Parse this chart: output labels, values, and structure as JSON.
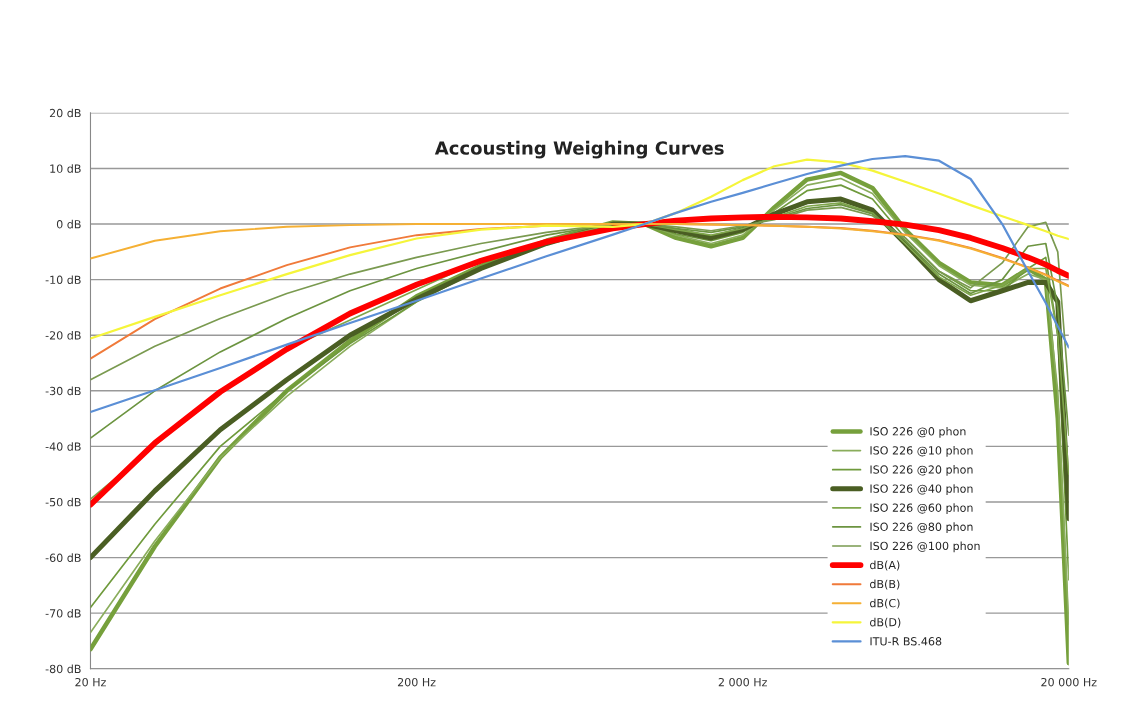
{
  "chart_data": {
    "type": "line",
    "title": "Accousting Weighing Curves",
    "x": [
      20,
      31.5,
      50,
      80,
      125,
      200,
      315,
      500,
      800,
      1000,
      1250,
      1600,
      2000,
      2500,
      3150,
      4000,
      5000,
      6300,
      8000,
      10000,
      12500,
      15000,
      17000,
      18500,
      20000
    ],
    "log": "x",
    "xlim": [
      20,
      20000
    ],
    "xticks": [
      {
        "value": 20,
        "label": "20 Hz"
      },
      {
        "value": 200,
        "label": "200 Hz"
      },
      {
        "value": 2000,
        "label": "2 000 Hz"
      },
      {
        "value": 20000,
        "label": "20 000 Hz"
      }
    ],
    "ylim": [
      -80,
      20
    ],
    "yticks": [
      {
        "value": -80,
        "label": "-80 dB"
      },
      {
        "value": -70,
        "label": "-70 dB"
      },
      {
        "value": -60,
        "label": "-60 dB"
      },
      {
        "value": -50,
        "label": "-50 dB"
      },
      {
        "value": -40,
        "label": "-40 dB"
      },
      {
        "value": -30,
        "label": "-30 dB"
      },
      {
        "value": -20,
        "label": "-20 dB"
      },
      {
        "value": -10,
        "label": "-10 dB"
      },
      {
        "value": 0,
        "label": "0 dB"
      },
      {
        "value": 10,
        "label": "10 dB"
      },
      {
        "value": 20,
        "label": "20 dB"
      }
    ],
    "grid": "y",
    "legend": "bottom right",
    "marker": "none",
    "line_style": "solid",
    "series": [
      {
        "name": "ISO 226 @0 phon",
        "color": "#76a03c",
        "values": [
          -76.5,
          -58,
          -42,
          -30,
          -21,
          -13,
          -7.5,
          -3,
          0.3,
          0,
          -2.5,
          -4,
          -2.5,
          3,
          8,
          9.2,
          6.5,
          -1,
          -7,
          -10.5,
          -11,
          -8,
          -10,
          -35,
          -79
        ]
      },
      {
        "name": "ISO 226 @10 phon",
        "color": "#8aad5c",
        "values": [
          -73.5,
          -57,
          -42,
          -31,
          -22,
          -14,
          -8,
          -3.5,
          0.3,
          0,
          -2,
          -3.5,
          -2,
          2.5,
          7,
          8.2,
          5.5,
          -1.5,
          -7.5,
          -11,
          -11.5,
          -9,
          -10,
          -30,
          -72
        ]
      },
      {
        "name": "ISO 226 @20 phon",
        "color": "#6f9a3c",
        "values": [
          -69,
          -54,
          -40,
          -30,
          -21.5,
          -14,
          -8,
          -3.5,
          0.2,
          0,
          -1.8,
          -3,
          -1.5,
          2,
          6,
          7,
          4.5,
          -2.5,
          -8.5,
          -12,
          -12,
          -8,
          -6,
          -20,
          -64
        ]
      },
      {
        "name": "ISO 226 @40 phon",
        "color": "#4a5e23",
        "values": [
          -60,
          -48,
          -37,
          -28,
          -20,
          -13.5,
          -8,
          -3.5,
          0,
          0,
          -1.2,
          -2.5,
          -1,
          1.8,
          4,
          4.5,
          2.5,
          -3.5,
          -10,
          -13.8,
          -12,
          -10.5,
          -10.5,
          -14,
          -53
        ]
      },
      {
        "name": "ISO 226 @60 phon",
        "color": "#7fa64b",
        "values": [
          -49.5,
          null,
          -30,
          -22.5,
          null,
          null,
          -6.5,
          -3,
          0,
          0,
          -1,
          -2,
          -0.8,
          1.2,
          3.2,
          3.8,
          2,
          -3.5,
          -9.5,
          -12.8,
          -11,
          -8,
          -8,
          -20,
          -45
        ]
      },
      {
        "name": "ISO 226 @80 phon",
        "color": "#6c9440",
        "values": [
          -38.5,
          -30,
          -23,
          -17,
          -12,
          -8,
          -5,
          -2,
          0,
          0,
          -0.8,
          -1.5,
          -0.5,
          1,
          2.8,
          3.5,
          1.8,
          -3,
          -9,
          -12.5,
          -10,
          -4,
          -3.5,
          -15,
          -38
        ]
      },
      {
        "name": "ISO 226 @100 phon",
        "color": "#7a9a50",
        "values": [
          -28,
          -22,
          -17,
          -12.5,
          -9,
          -6,
          -3.5,
          -1.5,
          0,
          0,
          -0.5,
          -1.2,
          -0.3,
          0.8,
          2.5,
          3,
          1.5,
          -2.5,
          -8.5,
          -11.5,
          -7,
          -0.5,
          0.3,
          -5,
          -30
        ]
      },
      {
        "name": "dB(A)",
        "color": "#ff0000",
        "values": [
          -50.5,
          -39.4,
          -30.2,
          -22.5,
          -16.1,
          -10.9,
          -6.6,
          -3.2,
          -0.8,
          0,
          0.6,
          1,
          1.2,
          1.3,
          1.2,
          1,
          0.5,
          -0.1,
          -1.1,
          -2.5,
          -4.3,
          -6,
          -7.3,
          -8.4,
          -9.3
        ]
      },
      {
        "name": "dB(B)",
        "color": "#f07a3a",
        "values": [
          -24.2,
          -17.1,
          -11.6,
          -7.4,
          -4.2,
          -2,
          -0.9,
          -0.3,
          0,
          0,
          0,
          -0.1,
          -0.2,
          -0.3,
          -0.5,
          -0.7,
          -1.2,
          -1.9,
          -2.9,
          -4.3,
          -6.1,
          -7.8,
          -9.1,
          -10.2,
          -11.1
        ]
      },
      {
        "name": "dB(C)",
        "color": "#f5b034",
        "values": [
          -6.2,
          -3,
          -1.3,
          -0.5,
          -0.2,
          0,
          0,
          0,
          0,
          0,
          0,
          -0.1,
          -0.2,
          -0.3,
          -0.5,
          -0.8,
          -1.3,
          -2,
          -3,
          -4.4,
          -6.2,
          -7.9,
          -9.2,
          -10.3,
          -11.2
        ]
      },
      {
        "name": "dB(D)",
        "color": "#f5f53a",
        "values": [
          -20.6,
          -16.7,
          -12.8,
          -9,
          -5.6,
          -2.6,
          -1,
          -0.3,
          -0.5,
          0,
          2,
          4.9,
          7.9,
          10.4,
          11.6,
          11.1,
          9.6,
          7.6,
          5.5,
          3.4,
          1.4,
          -0.2,
          -1.3,
          -2.1,
          -2.7
        ]
      },
      {
        "name": "ITU-R BS.468",
        "color": "#5b8fd6",
        "values": [
          -33.8,
          -29.9,
          -25.9,
          -21.7,
          -17.8,
          -13.8,
          -9.8,
          -5.8,
          -1.9,
          0,
          2,
          4,
          5.6,
          7.3,
          9,
          10.5,
          11.7,
          12.2,
          11.4,
          8.1,
          0,
          -8.5,
          -14.2,
          -18.4,
          -22.2
        ]
      }
    ]
  }
}
